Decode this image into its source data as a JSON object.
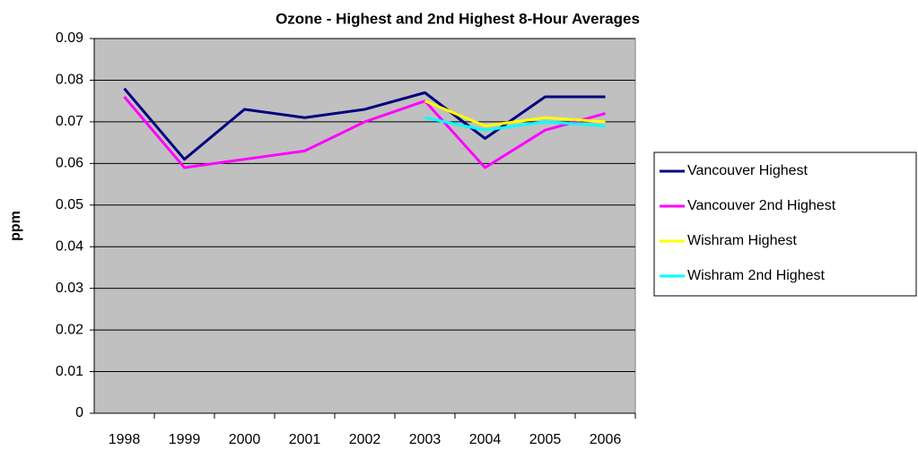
{
  "chart_data": {
    "type": "line",
    "title": "Ozone - Highest and 2nd Highest 8-Hour Averages",
    "y_label": "ppm",
    "categories": [
      "1998",
      "1999",
      "2000",
      "2001",
      "2002",
      "2003",
      "2004",
      "2005",
      "2006"
    ],
    "series": [
      {
        "name": "Vancouver Highest",
        "color": "#000080",
        "values": [
          0.078,
          0.061,
          0.073,
          0.071,
          0.073,
          0.077,
          0.066,
          0.076,
          0.076
        ]
      },
      {
        "name": "Vancouver 2nd Highest",
        "color": "#ff00ff",
        "values": [
          0.076,
          0.059,
          0.061,
          0.063,
          0.07,
          0.075,
          0.059,
          0.068,
          0.072
        ]
      },
      {
        "name": "Wishram Highest",
        "color": "#ffff00",
        "values": [
          null,
          null,
          null,
          null,
          null,
          0.075,
          0.069,
          0.071,
          0.07
        ]
      },
      {
        "name": "Wishram 2nd Highest",
        "color": "#00ffff",
        "values": [
          null,
          null,
          null,
          null,
          null,
          0.071,
          0.068,
          0.07,
          0.069
        ]
      }
    ],
    "ylim": [
      0,
      0.09
    ],
    "yticks": [
      0,
      0.01,
      0.02,
      0.03,
      0.04,
      0.05,
      0.06,
      0.07,
      0.08,
      0.09
    ],
    "grid": true,
    "legend": "right",
    "plot_background": "#c0c0c0"
  }
}
